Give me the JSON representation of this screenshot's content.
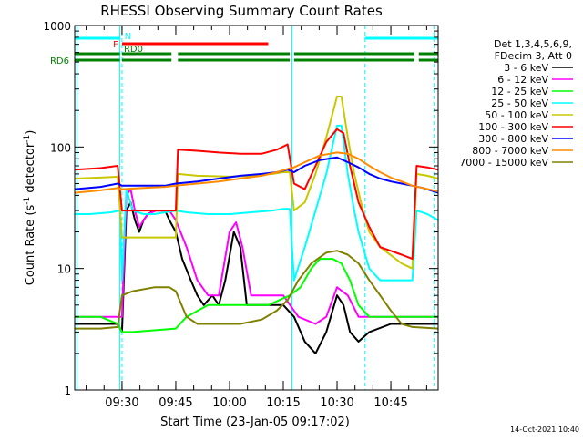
{
  "chart_data": {
    "type": "line",
    "title": "RHESSI Observing Summary Count Rates",
    "xlabel": "Start Time (23-Jan-05 09:17:02)",
    "ylabel_main": "Count Rate (s",
    "ylabel_sup1": "-1",
    "ylabel_mid": " detector",
    "ylabel_sup2": "-1",
    "ylabel_end": ")",
    "footer": "14-Oct-2021 10:40",
    "y_scale": "log",
    "ylim": [
      1,
      1000
    ],
    "xlim_minutes": [
      9.28,
      10.97
    ],
    "y_ticks": [
      {
        "value": 1,
        "label": "1"
      },
      {
        "value": 10,
        "label": "10"
      },
      {
        "value": 100,
        "label": "100"
      },
      {
        "value": 1000,
        "label": "1000"
      }
    ],
    "x_ticks": [
      {
        "value": 9.5,
        "label": "09:30"
      },
      {
        "value": 9.75,
        "label": "09:45"
      },
      {
        "value": 10.0,
        "label": "10:00"
      },
      {
        "value": 10.25,
        "label": "10:15"
      },
      {
        "value": 10.5,
        "label": "10:30"
      },
      {
        "value": 10.75,
        "label": "10:45"
      }
    ],
    "legend_header": [
      "Det 1,3,4,5,6,9,",
      "FDecim 3, Att 0"
    ],
    "legend_placement": "right",
    "series": [
      {
        "name": "3 - 6 keV",
        "color": "#000000",
        "points": [
          [
            9.28,
            3.5
          ],
          [
            9.4,
            3.5
          ],
          [
            9.48,
            3.5
          ],
          [
            9.5,
            3.0
          ],
          [
            9.52,
            30
          ],
          [
            9.54,
            35
          ],
          [
            9.56,
            25
          ],
          [
            9.58,
            20
          ],
          [
            9.6,
            25
          ],
          [
            9.62,
            28
          ],
          [
            9.65,
            30
          ],
          [
            9.7,
            30
          ],
          [
            9.72,
            25
          ],
          [
            9.75,
            20
          ],
          [
            9.78,
            12
          ],
          [
            9.82,
            8
          ],
          [
            9.85,
            6
          ],
          [
            9.88,
            5
          ],
          [
            9.92,
            6
          ],
          [
            9.95,
            5
          ],
          [
            9.98,
            8
          ],
          [
            10.02,
            20
          ],
          [
            10.05,
            15
          ],
          [
            10.08,
            5
          ],
          [
            10.12,
            5
          ],
          [
            10.18,
            5
          ],
          [
            10.25,
            5
          ],
          [
            10.3,
            4
          ],
          [
            10.35,
            2.5
          ],
          [
            10.4,
            2.0
          ],
          [
            10.45,
            3.0
          ],
          [
            10.5,
            6
          ],
          [
            10.53,
            5
          ],
          [
            10.56,
            3
          ],
          [
            10.6,
            2.5
          ],
          [
            10.65,
            3.0
          ],
          [
            10.75,
            3.5
          ],
          [
            10.85,
            3.5
          ],
          [
            10.97,
            3.5
          ]
        ]
      },
      {
        "name": "6 - 12 keV",
        "color": "#ff00ff",
        "points": [
          [
            9.28,
            4
          ],
          [
            9.48,
            4
          ],
          [
            9.5,
            4
          ],
          [
            9.52,
            40
          ],
          [
            9.54,
            45
          ],
          [
            9.56,
            30
          ],
          [
            9.58,
            22
          ],
          [
            9.62,
            28
          ],
          [
            9.66,
            30
          ],
          [
            9.72,
            30
          ],
          [
            9.75,
            25
          ],
          [
            9.8,
            15
          ],
          [
            9.85,
            8
          ],
          [
            9.9,
            6
          ],
          [
            9.95,
            6
          ],
          [
            10.0,
            20
          ],
          [
            10.03,
            24
          ],
          [
            10.06,
            15
          ],
          [
            10.1,
            6
          ],
          [
            10.18,
            6
          ],
          [
            10.25,
            6
          ],
          [
            10.32,
            4
          ],
          [
            10.4,
            3.5
          ],
          [
            10.45,
            4
          ],
          [
            10.5,
            7
          ],
          [
            10.55,
            6
          ],
          [
            10.6,
            4
          ],
          [
            10.7,
            4
          ],
          [
            10.85,
            4
          ],
          [
            10.97,
            4
          ]
        ]
      },
      {
        "name": "12 - 25 keV",
        "color": "#00ff00",
        "points": [
          [
            9.28,
            4
          ],
          [
            9.4,
            4
          ],
          [
            9.48,
            3.5
          ],
          [
            9.5,
            3.0
          ],
          [
            9.55,
            3.0
          ],
          [
            9.75,
            3.2
          ],
          [
            9.8,
            4
          ],
          [
            9.9,
            5
          ],
          [
            10.0,
            5
          ],
          [
            10.1,
            5
          ],
          [
            10.18,
            5
          ],
          [
            10.28,
            6
          ],
          [
            10.33,
            7
          ],
          [
            10.38,
            10
          ],
          [
            10.42,
            12
          ],
          [
            10.48,
            12
          ],
          [
            10.52,
            11
          ],
          [
            10.56,
            8
          ],
          [
            10.6,
            5
          ],
          [
            10.65,
            4
          ],
          [
            10.75,
            4
          ],
          [
            10.85,
            4
          ],
          [
            10.97,
            4
          ]
        ]
      },
      {
        "name": "25 - 50 keV",
        "color": "#00ffff",
        "points": [
          [
            9.28,
            28
          ],
          [
            9.35,
            28
          ],
          [
            9.45,
            29
          ],
          [
            9.49,
            30
          ],
          [
            9.5,
            8
          ],
          [
            9.52,
            45
          ],
          [
            9.55,
            30
          ],
          [
            9.6,
            28
          ],
          [
            9.65,
            28
          ],
          [
            9.7,
            29
          ],
          [
            9.75,
            30
          ],
          [
            9.8,
            29
          ],
          [
            9.9,
            28
          ],
          [
            10.0,
            28
          ],
          [
            10.1,
            29
          ],
          [
            10.2,
            30
          ],
          [
            10.25,
            31
          ],
          [
            10.28,
            31
          ],
          [
            10.3,
            8
          ],
          [
            10.35,
            15
          ],
          [
            10.4,
            30
          ],
          [
            10.45,
            60
          ],
          [
            10.5,
            150
          ],
          [
            10.52,
            150
          ],
          [
            10.55,
            60
          ],
          [
            10.58,
            30
          ],
          [
            10.6,
            20
          ],
          [
            10.62,
            15
          ],
          [
            10.65,
            10
          ],
          [
            10.7,
            8
          ],
          [
            10.8,
            8
          ],
          [
            10.85,
            8
          ],
          [
            10.87,
            30
          ],
          [
            10.92,
            28
          ],
          [
            10.97,
            25
          ]
        ]
      },
      {
        "name": "50 - 100 keV",
        "color": "#c8c800",
        "points": [
          [
            9.28,
            55
          ],
          [
            9.4,
            56
          ],
          [
            9.48,
            57
          ],
          [
            9.5,
            18
          ],
          [
            9.58,
            18
          ],
          [
            9.62,
            18
          ],
          [
            9.75,
            18
          ],
          [
            9.76,
            60
          ],
          [
            9.85,
            58
          ],
          [
            10.0,
            57
          ],
          [
            10.1,
            58
          ],
          [
            10.2,
            60
          ],
          [
            10.25,
            62
          ],
          [
            10.28,
            62
          ],
          [
            10.3,
            30
          ],
          [
            10.35,
            35
          ],
          [
            10.4,
            60
          ],
          [
            10.45,
            120
          ],
          [
            10.5,
            260
          ],
          [
            10.52,
            260
          ],
          [
            10.55,
            120
          ],
          [
            10.58,
            60
          ],
          [
            10.62,
            30
          ],
          [
            10.65,
            20
          ],
          [
            10.7,
            15
          ],
          [
            10.8,
            11
          ],
          [
            10.85,
            10
          ],
          [
            10.87,
            60
          ],
          [
            10.92,
            58
          ],
          [
            10.97,
            55
          ]
        ]
      },
      {
        "name": "100 - 300 keV",
        "color": "#ff0000",
        "points": [
          [
            9.28,
            65
          ],
          [
            9.4,
            67
          ],
          [
            9.48,
            70
          ],
          [
            9.5,
            30
          ],
          [
            9.6,
            30
          ],
          [
            9.7,
            30
          ],
          [
            9.75,
            30
          ],
          [
            9.76,
            95
          ],
          [
            9.85,
            93
          ],
          [
            9.95,
            90
          ],
          [
            10.05,
            88
          ],
          [
            10.15,
            88
          ],
          [
            10.22,
            95
          ],
          [
            10.27,
            105
          ],
          [
            10.3,
            50
          ],
          [
            10.35,
            45
          ],
          [
            10.4,
            70
          ],
          [
            10.45,
            110
          ],
          [
            10.5,
            140
          ],
          [
            10.53,
            130
          ],
          [
            10.56,
            70
          ],
          [
            10.6,
            35
          ],
          [
            10.65,
            22
          ],
          [
            10.7,
            15
          ],
          [
            10.8,
            13
          ],
          [
            10.85,
            12
          ],
          [
            10.87,
            70
          ],
          [
            10.92,
            68
          ],
          [
            10.97,
            65
          ]
        ]
      },
      {
        "name": "300 - 800 keV",
        "color": "#0000ff",
        "points": [
          [
            9.28,
            45
          ],
          [
            9.4,
            47
          ],
          [
            9.48,
            50
          ],
          [
            9.5,
            48
          ],
          [
            9.6,
            48
          ],
          [
            9.7,
            48
          ],
          [
            9.75,
            50
          ],
          [
            9.85,
            52
          ],
          [
            9.95,
            55
          ],
          [
            10.05,
            58
          ],
          [
            10.15,
            60
          ],
          [
            10.22,
            62
          ],
          [
            10.27,
            65
          ],
          [
            10.3,
            62
          ],
          [
            10.35,
            70
          ],
          [
            10.42,
            78
          ],
          [
            10.5,
            82
          ],
          [
            10.55,
            75
          ],
          [
            10.6,
            68
          ],
          [
            10.65,
            60
          ],
          [
            10.7,
            55
          ],
          [
            10.75,
            52
          ],
          [
            10.8,
            50
          ],
          [
            10.85,
            48
          ],
          [
            10.9,
            46
          ],
          [
            10.97,
            42
          ]
        ]
      },
      {
        "name": "800 - 7000 keV",
        "color": "#ff8c00",
        "points": [
          [
            9.28,
            42
          ],
          [
            9.4,
            44
          ],
          [
            9.48,
            46
          ],
          [
            9.5,
            45
          ],
          [
            9.6,
            46
          ],
          [
            9.7,
            47
          ],
          [
            9.75,
            48
          ],
          [
            9.85,
            50
          ],
          [
            9.95,
            52
          ],
          [
            10.05,
            55
          ],
          [
            10.15,
            58
          ],
          [
            10.22,
            62
          ],
          [
            10.27,
            66
          ],
          [
            10.3,
            68
          ],
          [
            10.35,
            75
          ],
          [
            10.42,
            85
          ],
          [
            10.5,
            90
          ],
          [
            10.55,
            88
          ],
          [
            10.6,
            80
          ],
          [
            10.65,
            70
          ],
          [
            10.7,
            62
          ],
          [
            10.75,
            56
          ],
          [
            10.8,
            52
          ],
          [
            10.85,
            48
          ],
          [
            10.9,
            46
          ],
          [
            10.97,
            43
          ]
        ]
      },
      {
        "name": "7000 - 15000 keV",
        "color": "#808000",
        "points": [
          [
            9.28,
            3.2
          ],
          [
            9.4,
            3.2
          ],
          [
            9.48,
            3.3
          ],
          [
            9.5,
            6
          ],
          [
            9.55,
            6.5
          ],
          [
            9.65,
            7
          ],
          [
            9.72,
            7
          ],
          [
            9.75,
            6.5
          ],
          [
            9.8,
            4
          ],
          [
            9.85,
            3.5
          ],
          [
            9.95,
            3.5
          ],
          [
            10.05,
            3.5
          ],
          [
            10.15,
            3.8
          ],
          [
            10.22,
            4.5
          ],
          [
            10.27,
            5.5
          ],
          [
            10.32,
            8
          ],
          [
            10.38,
            11
          ],
          [
            10.45,
            13.5
          ],
          [
            10.5,
            14
          ],
          [
            10.55,
            13
          ],
          [
            10.6,
            11
          ],
          [
            10.65,
            8
          ],
          [
            10.7,
            6
          ],
          [
            10.75,
            4.5
          ],
          [
            10.8,
            3.5
          ],
          [
            10.85,
            3.3
          ],
          [
            10.97,
            3.2
          ]
        ]
      }
    ],
    "flag_bars": [
      {
        "label": "N",
        "color": "#00ffff",
        "label_side": "right",
        "segments": [
          [
            9.28,
            9.49
          ],
          [
            10.63,
            10.97
          ]
        ]
      },
      {
        "label": "F",
        "color": "#ff0000",
        "label_side": "left",
        "segments": [
          [
            9.5,
            10.18
          ]
        ]
      },
      {
        "label": "RD0",
        "color": "#008000",
        "label_side": "right",
        "segments": [
          [
            9.28,
            9.49
          ],
          [
            9.5,
            9.73
          ],
          [
            9.76,
            10.28
          ],
          [
            10.3,
            10.86
          ],
          [
            10.88,
            10.97
          ]
        ]
      },
      {
        "label": "RD6",
        "color": "#008000",
        "label_side": "left",
        "segments": [
          [
            9.28,
            9.49
          ],
          [
            9.5,
            9.73
          ],
          [
            9.76,
            10.28
          ],
          [
            10.3,
            10.86
          ],
          [
            10.88,
            10.97
          ]
        ]
      }
    ],
    "saa_lines": [
      9.5,
      10.63,
      10.95
    ],
    "eclipse_lines": [
      9.29,
      9.49,
      10.29
    ]
  }
}
